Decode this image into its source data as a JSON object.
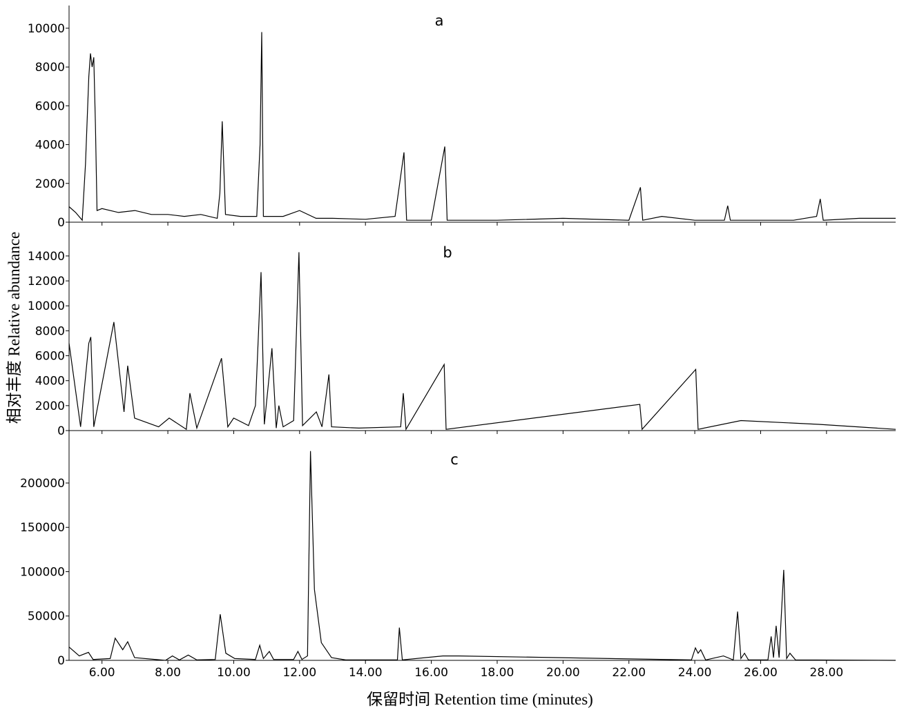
{
  "chart_data": [
    {
      "type": "line",
      "label": "a",
      "xlim": [
        5,
        30.1
      ],
      "ylim": [
        0,
        11170
      ],
      "yticks": [
        0,
        2000,
        4000,
        6000,
        8000,
        10000
      ],
      "x": [
        5.0,
        5.2,
        5.4,
        5.5,
        5.6,
        5.65,
        5.7,
        5.75,
        5.8,
        5.85,
        6.0,
        6.5,
        7.0,
        7.5,
        8.0,
        8.5,
        9.0,
        9.5,
        9.58,
        9.65,
        9.75,
        10.2,
        10.7,
        10.8,
        10.85,
        10.9,
        11.5,
        12.0,
        12.5,
        13.0,
        14.0,
        14.9,
        15.17,
        15.25,
        16.0,
        16.41,
        16.48,
        18.0,
        20.0,
        22.0,
        22.35,
        22.42,
        23.0,
        24.0,
        24.9,
        25.0,
        25.08,
        27.0,
        27.7,
        27.81,
        27.9,
        29.0,
        30.1
      ],
      "values": [
        800,
        500,
        100,
        3000,
        7500,
        8700,
        8000,
        8500,
        5000,
        600,
        700,
        500,
        600,
        400,
        400,
        300,
        400,
        200,
        1500,
        5200,
        400,
        300,
        300,
        4000,
        9800,
        300,
        300,
        600,
        200,
        200,
        150,
        300,
        3600,
        100,
        100,
        3900,
        100,
        100,
        200,
        100,
        1800,
        100,
        300,
        100,
        100,
        850,
        100,
        100,
        300,
        1200,
        100,
        200,
        200
      ]
    },
    {
      "type": "line",
      "label": "b",
      "y_label": "相对丰度  Relative abundance",
      "xlim": [
        5,
        30.1
      ],
      "ylim": [
        0,
        16430
      ],
      "yticks": [
        0,
        2000,
        4000,
        6000,
        8000,
        10000,
        12000,
        14000
      ],
      "x": [
        5.0,
        5.35,
        5.6,
        5.66,
        5.75,
        6.36,
        6.67,
        6.78,
        6.99,
        7.72,
        8.04,
        8.56,
        8.67,
        8.88,
        9.63,
        9.82,
        10.0,
        10.45,
        10.66,
        10.83,
        10.93,
        11.16,
        11.29,
        11.37,
        11.5,
        11.82,
        11.98,
        12.09,
        12.51,
        12.68,
        12.89,
        12.97,
        13.8,
        15.07,
        15.15,
        15.23,
        16.39,
        16.45,
        22.33,
        22.4,
        24.03,
        24.1,
        25.4,
        27.77,
        30.1
      ],
      "values": [
        7000,
        300,
        7000,
        7500,
        300,
        8700,
        1500,
        5200,
        1000,
        300,
        1000,
        100,
        3000,
        200,
        5800,
        300,
        1000,
        400,
        2000,
        12700,
        500,
        6600,
        200,
        2000,
        300,
        800,
        14300,
        400,
        1500,
        300,
        4500,
        300,
        200,
        300,
        3000,
        100,
        5300,
        100,
        2100,
        100,
        4900,
        100,
        800,
        500,
        100
      ]
    },
    {
      "type": "line",
      "label": "c",
      "x_label": "保留时间  Retention time (minutes)",
      "xlim": [
        5,
        30.1
      ],
      "ylim": [
        0,
        256800
      ],
      "yticks": [
        0,
        50000,
        100000,
        150000,
        200000
      ],
      "xticks": [
        {
          "value": 6,
          "label": "6.00"
        },
        {
          "value": 8,
          "label": "8.00"
        },
        {
          "value": 10,
          "label": "10.00"
        },
        {
          "value": 12,
          "label": "12.00"
        },
        {
          "value": 14,
          "label": "14.00"
        },
        {
          "value": 16,
          "label": "16.00"
        },
        {
          "value": 18,
          "label": "18.00"
        },
        {
          "value": 20,
          "label": "20.00"
        },
        {
          "value": 22,
          "label": "22.00"
        },
        {
          "value": 24,
          "label": "24.00"
        },
        {
          "value": 26,
          "label": "26.00"
        },
        {
          "value": 28,
          "label": "28.00"
        }
      ],
      "x": [
        5.0,
        5.31,
        5.59,
        5.73,
        6.25,
        6.4,
        6.63,
        6.78,
        6.99,
        7.93,
        8.14,
        8.35,
        8.62,
        8.88,
        9.44,
        9.59,
        9.76,
        10.03,
        10.66,
        10.79,
        10.9,
        11.08,
        11.21,
        11.82,
        11.95,
        12.07,
        12.24,
        12.33,
        12.45,
        12.66,
        12.97,
        13.4,
        14.97,
        15.03,
        15.12,
        16.35,
        16.84,
        23.9,
        24.02,
        24.1,
        24.18,
        24.33,
        24.87,
        25.17,
        25.3,
        25.4,
        25.51,
        25.63,
        26.22,
        26.32,
        26.39,
        26.47,
        26.56,
        26.7,
        26.79,
        26.89,
        27.06,
        30.1
      ],
      "values": [
        15000,
        5000,
        9000,
        1000,
        2000,
        25000,
        12000,
        21000,
        3000,
        0,
        5000,
        500,
        6000,
        500,
        1000,
        52000,
        8000,
        2000,
        1000,
        17000,
        2000,
        10000,
        1000,
        1000,
        10000,
        1000,
        5000,
        236000,
        80000,
        20000,
        3000,
        500,
        500,
        37000,
        500,
        5000,
        5000,
        500,
        14000,
        8000,
        12000,
        500,
        5000,
        500,
        55000,
        2000,
        8000,
        500,
        500,
        27000,
        3000,
        39000,
        3000,
        102000,
        2000,
        8000,
        500,
        0
      ]
    }
  ]
}
